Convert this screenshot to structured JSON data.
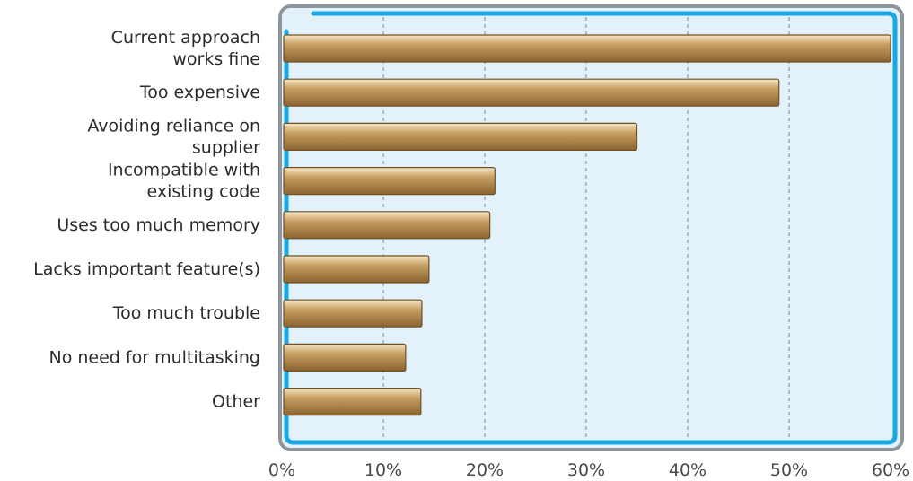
{
  "chart_data": {
    "type": "bar",
    "orientation": "horizontal",
    "categories": [
      [
        "Current approach",
        "works fine"
      ],
      [
        "Too expensive"
      ],
      [
        "Avoiding reliance on",
        "supplier"
      ],
      [
        "Incompatible with",
        "existing code"
      ],
      [
        "Uses too much memory"
      ],
      [
        "Lacks important feature(s)"
      ],
      [
        "Too much trouble"
      ],
      [
        "No need for multitasking"
      ],
      [
        "Other"
      ]
    ],
    "values": [
      60,
      49,
      35,
      21,
      20.5,
      14.5,
      13.8,
      12.2,
      13.7
    ],
    "x_ticks": [
      "0%",
      "10%",
      "20%",
      "30%",
      "40%",
      "50%",
      "60%"
    ],
    "xlim": [
      0,
      60
    ],
    "grid": true,
    "colors": {
      "plot_bg": "#e3f1fb",
      "frame": "#8f959c",
      "inner_border": "#19a8e6",
      "grid": "#8a97a6",
      "bar_light": "#f7e8c8",
      "bar_mid": "#c8a064",
      "bar_dark": "#8a6330",
      "bar_edge": "#6e5024"
    }
  }
}
